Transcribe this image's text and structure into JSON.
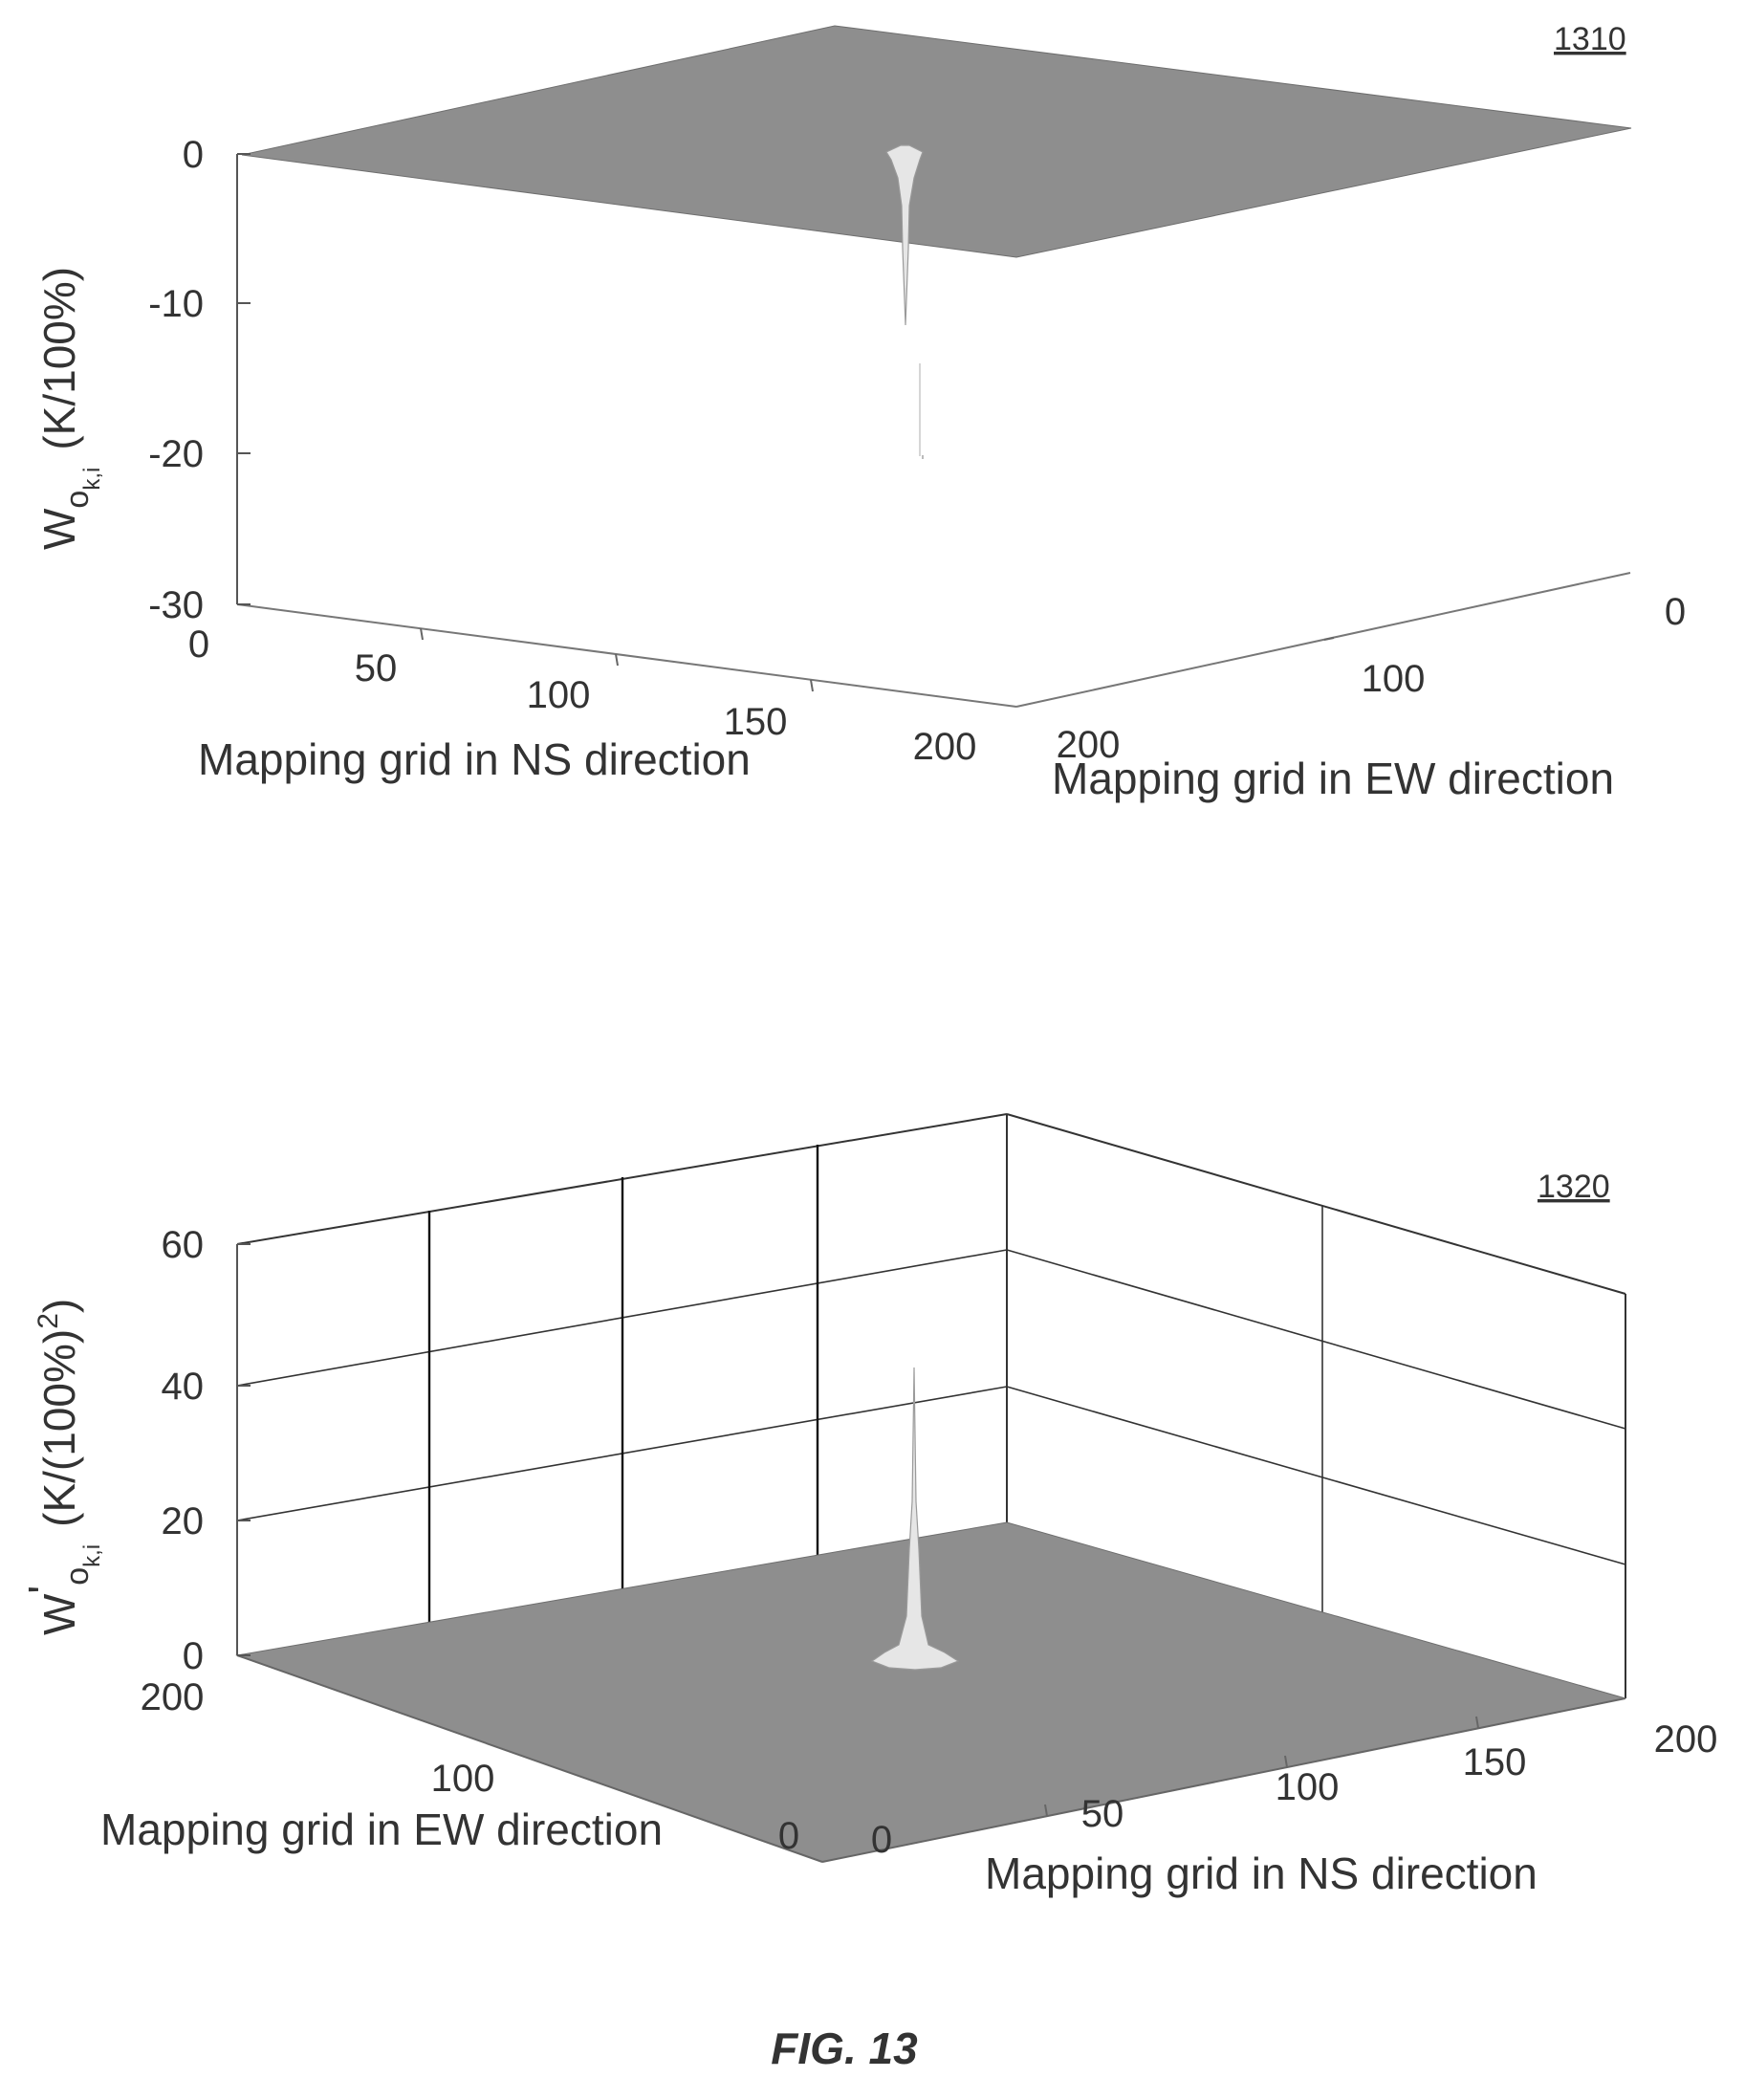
{
  "figure": {
    "caption": "FIG. 13"
  },
  "colors": {
    "surface": "#8e8e8e",
    "surface_edge": "#6e6e6e",
    "axis": "#555555",
    "spike": "#e6e6e6",
    "grid": "#222222"
  },
  "chart_data": [
    {
      "ref": "1310",
      "type": "surface",
      "title": "",
      "xlabel": "Mapping grid in NS direction",
      "ylabel": "Mapping grid in EW direction",
      "zlabel_main": "W",
      "zlabel_sub": "o",
      "zlabel_subsub": "k,i",
      "zlabel_units": "(K/100%)",
      "xlim": [
        0,
        200
      ],
      "ylim": [
        0,
        200
      ],
      "zlim": [
        -30,
        0
      ],
      "xticks": [
        "0",
        "50",
        "100",
        "150",
        "200"
      ],
      "yticks": [
        "0",
        "100",
        "200"
      ],
      "zticks": [
        "0",
        "-10",
        "-20",
        "-30"
      ],
      "grid": false,
      "surface_level": 0,
      "feature": {
        "kind": "narrow downward spike",
        "peak_value": -20,
        "x": 100,
        "y": 100
      }
    },
    {
      "ref": "1320",
      "type": "surface",
      "title": "",
      "xlabel": "Mapping grid in NS direction",
      "ylabel": "Mapping grid in EW direction",
      "zlabel_main": "W",
      "zlabel_prime": "'",
      "zlabel_sub": "o",
      "zlabel_subsub": "k,i",
      "zlabel_units": "(K/(100%)",
      "zlabel_units_sup": "2",
      "zlabel_units_close": ")",
      "xlim": [
        0,
        200
      ],
      "ylim": [
        0,
        200
      ],
      "zlim": [
        0,
        60
      ],
      "xticks": [
        "0",
        "50",
        "100",
        "150",
        "200"
      ],
      "yticks": [
        "0",
        "100",
        "200"
      ],
      "zticks": [
        "0",
        "20",
        "40",
        "60"
      ],
      "grid": true,
      "surface_level": 0,
      "feature": {
        "kind": "narrow upward spike",
        "peak_value": 40,
        "x": 100,
        "y": 100
      }
    }
  ]
}
